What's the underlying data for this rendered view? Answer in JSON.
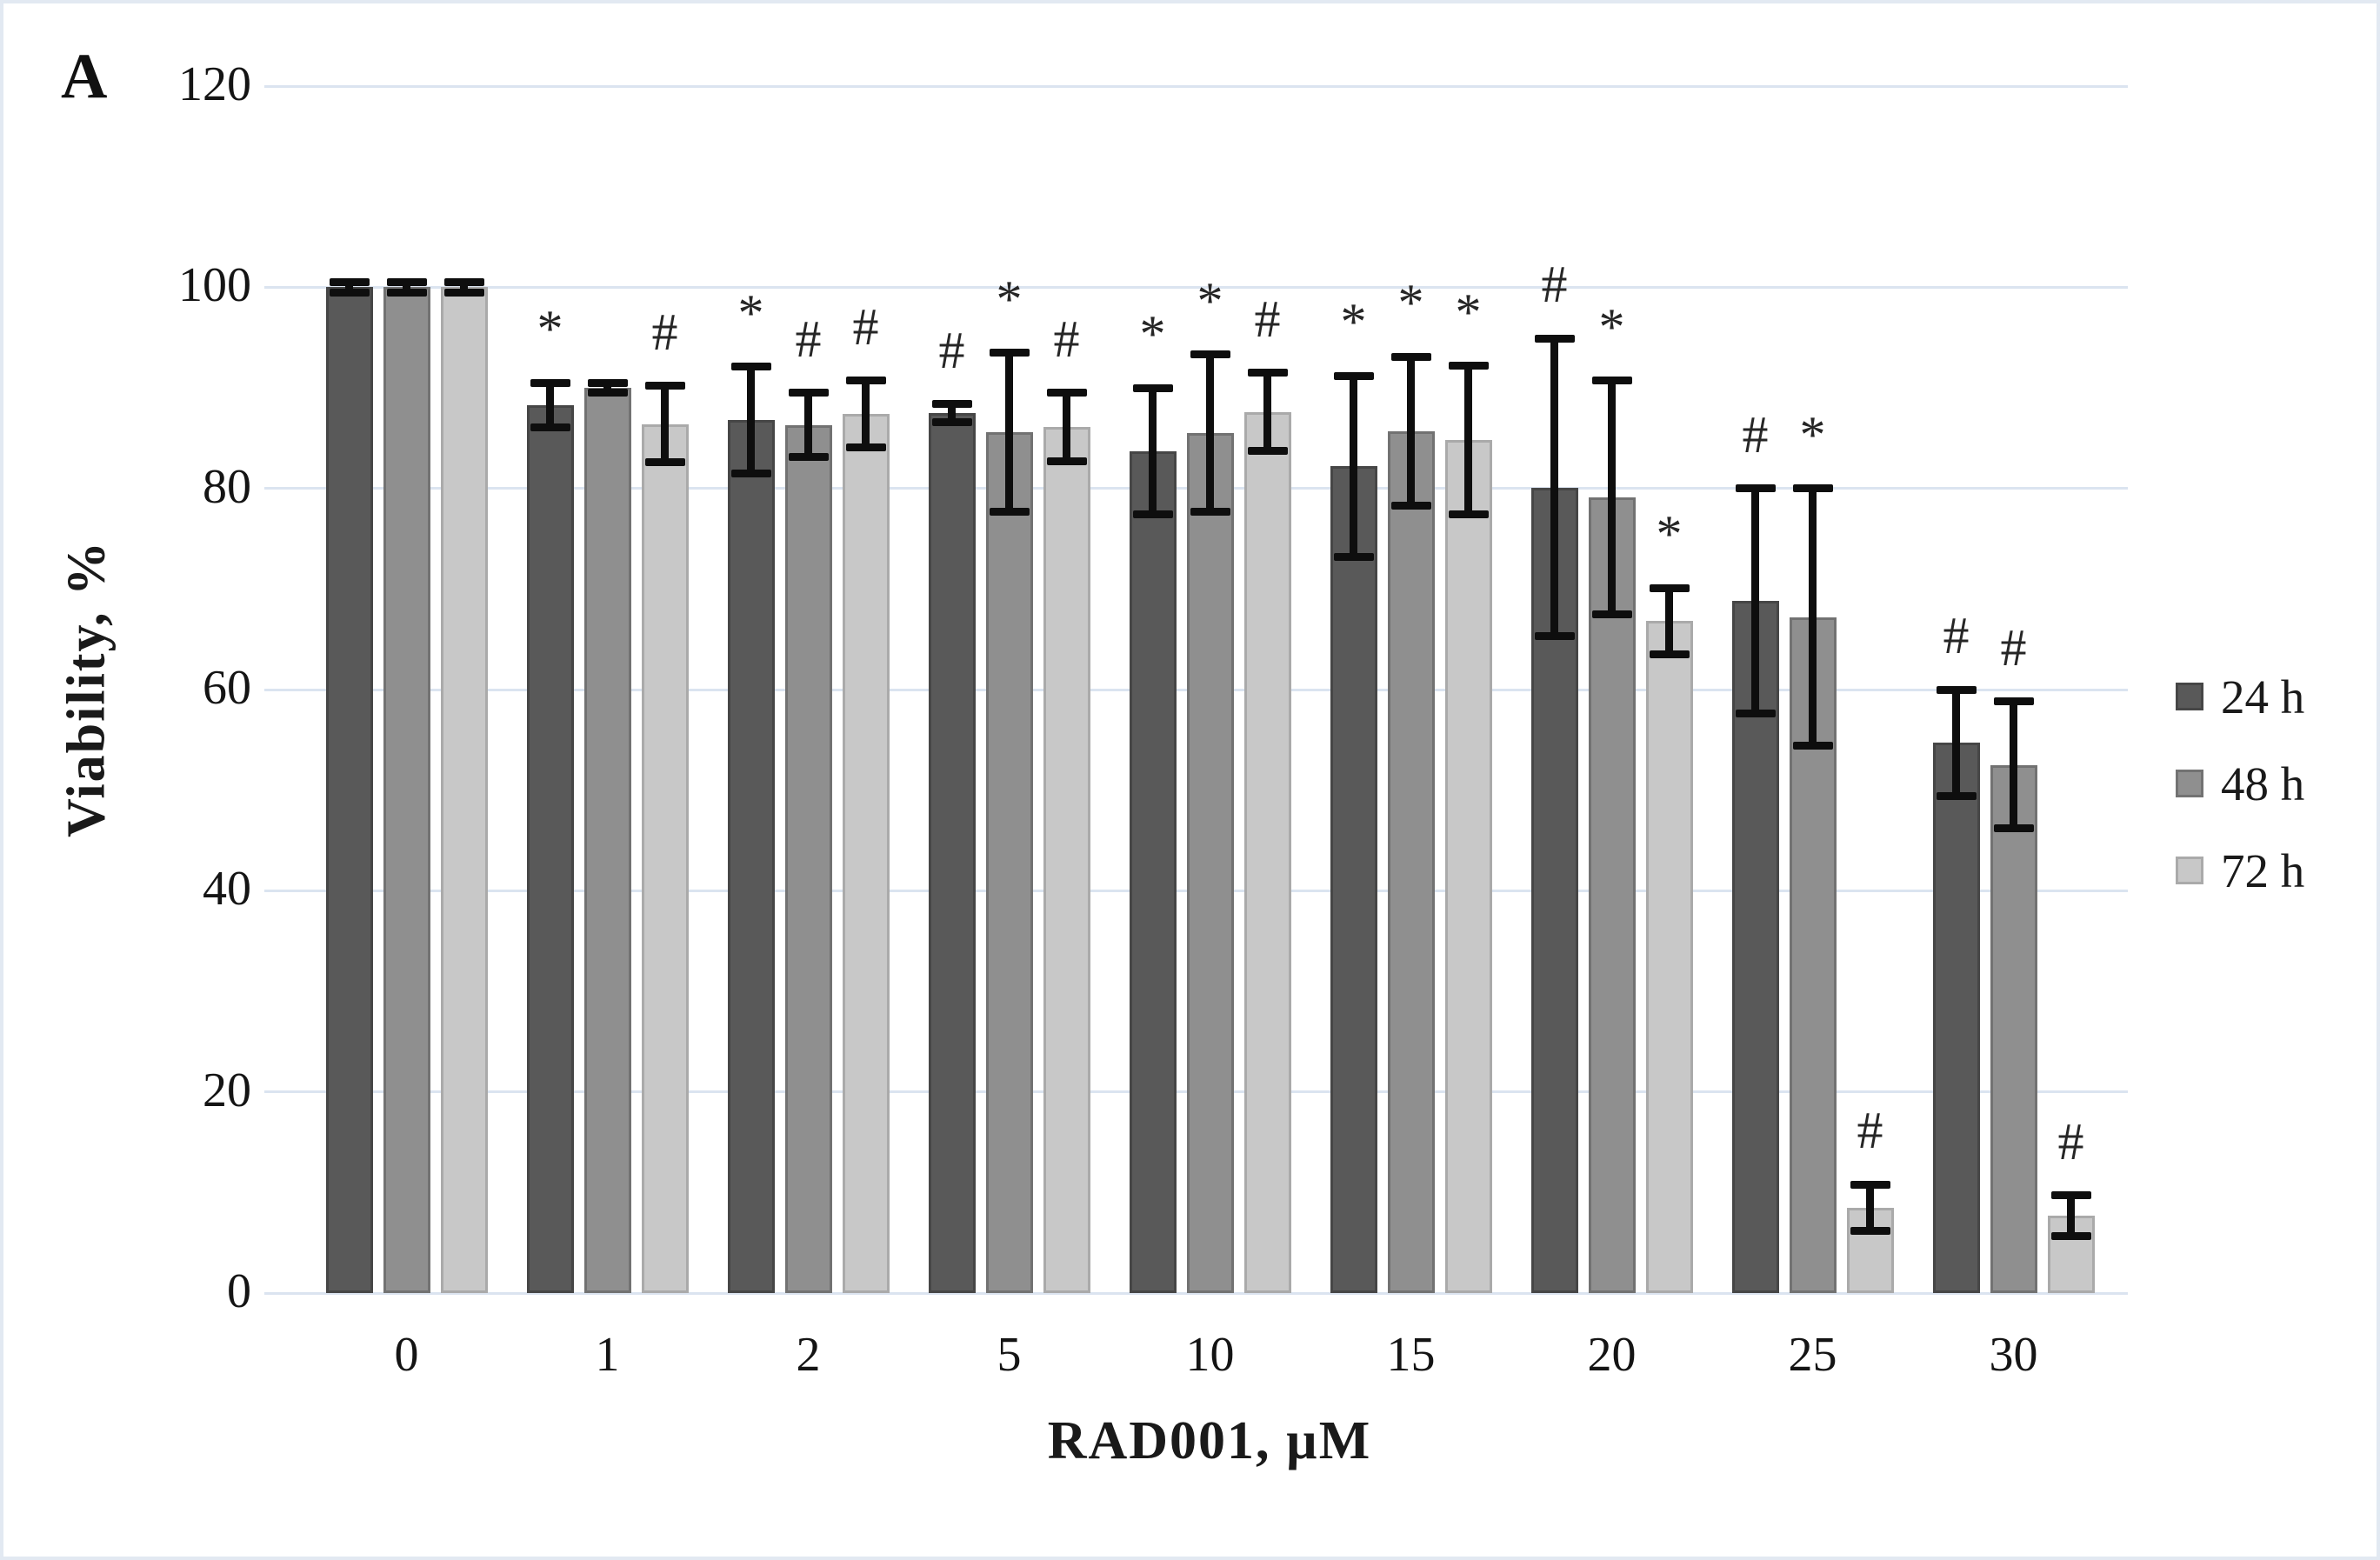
{
  "panel_label": "A",
  "accent_colors": {
    "series_24h": "#595959",
    "series_48h": "#8f8f8f",
    "series_72h": "#c8c8c8",
    "error_bar": "#0e0e0e",
    "gridline": "#dbe4f0",
    "figure_border": "#e2e9f2"
  },
  "chart_data": {
    "type": "bar",
    "title": "",
    "xlabel": "RAD001, µM",
    "ylabel": "Viability,  %",
    "ylim": [
      0,
      120
    ],
    "y_ticks": [
      0,
      20,
      40,
      60,
      80,
      100,
      120
    ],
    "grid": "horizontal gridlines on",
    "legend_position": "right",
    "categories": [
      "0",
      "1",
      "2",
      "5",
      "10",
      "15",
      "20",
      "25",
      "30"
    ],
    "series": [
      {
        "name": "24 h",
        "values": [
          100,
          88.3,
          86.8,
          87.5,
          83.7,
          82.2,
          80.1,
          68.8,
          54.7
        ],
        "errors": [
          0.5,
          2.2,
          5.3,
          0.9,
          6.3,
          9.0,
          14.8,
          11.2,
          5.3
        ],
        "annotations": [
          "",
          "*",
          "*",
          "#",
          "*",
          "*",
          "#",
          "#",
          "#"
        ]
      },
      {
        "name": "48 h",
        "values": [
          100,
          90.0,
          86.3,
          85.6,
          85.5,
          85.7,
          79.1,
          67.2,
          52.5
        ],
        "errors": [
          0.5,
          0.5,
          3.2,
          7.9,
          7.8,
          7.4,
          11.6,
          12.8,
          6.3
        ],
        "annotations": [
          "",
          "",
          "#",
          "*",
          "*",
          "*",
          "*",
          "*",
          "#"
        ]
      },
      {
        "name": "72 h",
        "values": [
          100,
          86.4,
          87.4,
          86.1,
          87.6,
          84.8,
          66.8,
          8.5,
          7.7
        ],
        "errors": [
          0.5,
          3.8,
          3.3,
          3.4,
          3.9,
          7.4,
          3.3,
          2.3,
          2.0
        ],
        "annotations": [
          "",
          "#",
          "#",
          "#",
          "#",
          "*",
          "*",
          "#",
          "#"
        ]
      }
    ],
    "significance_symbols": [
      "*",
      "#"
    ]
  }
}
